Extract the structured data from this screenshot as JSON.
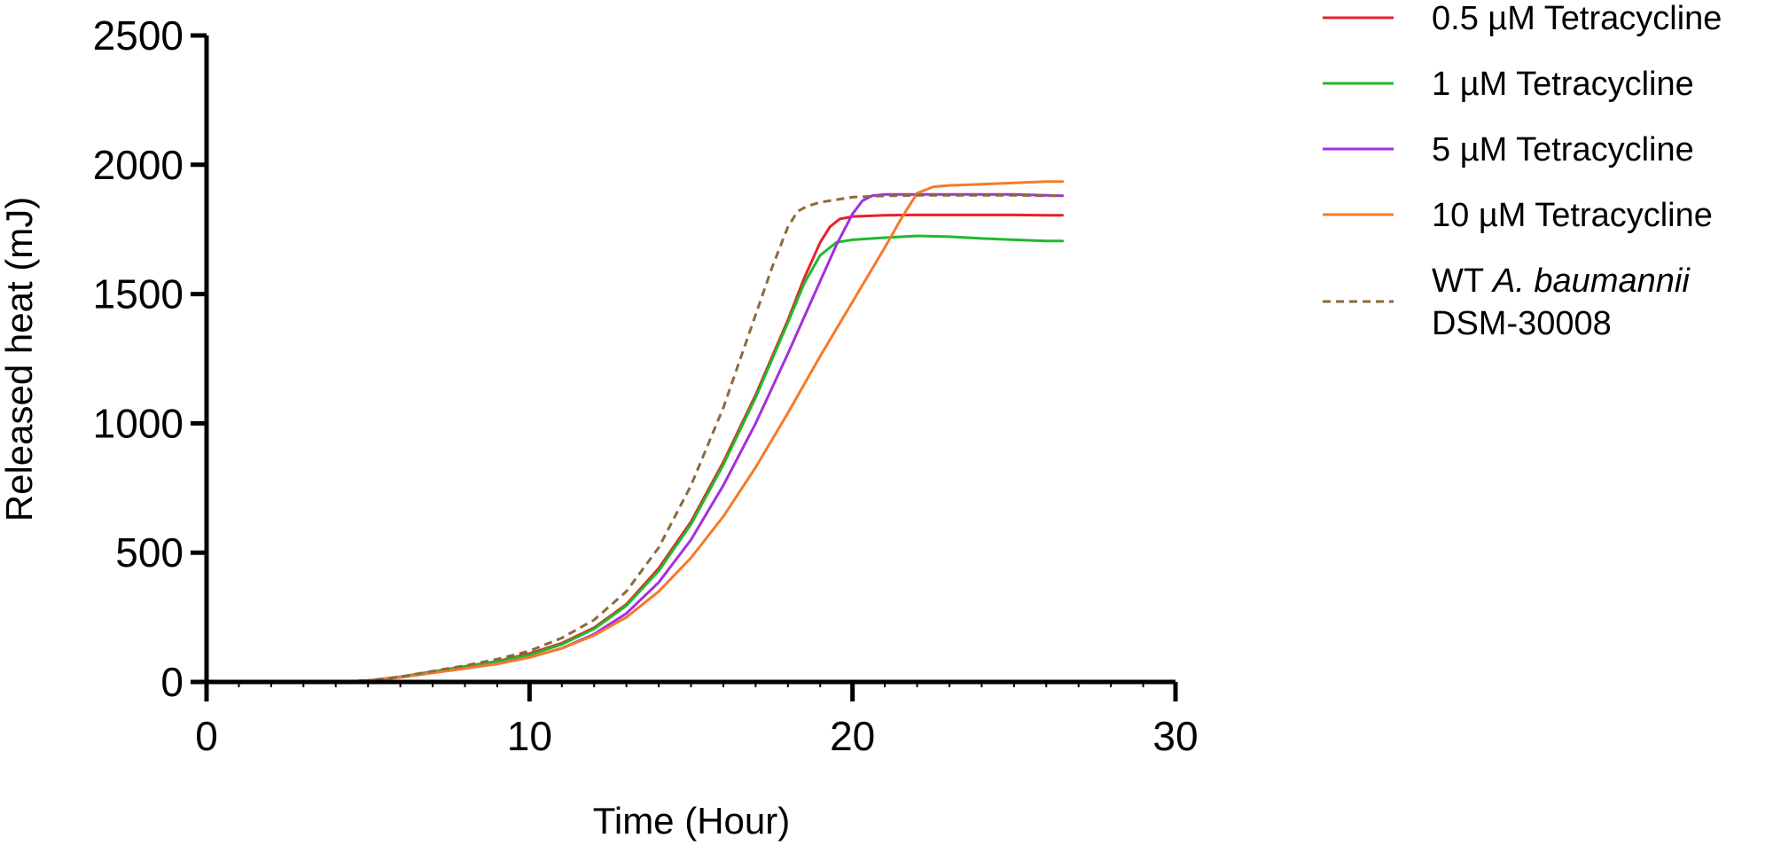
{
  "chart_data": {
    "type": "line",
    "title": "",
    "xlabel": "Time (Hour)",
    "ylabel": "Released heat (mJ)",
    "xlim": [
      0,
      30
    ],
    "ylim": [
      0,
      2500
    ],
    "xticks": [
      0,
      10,
      20,
      30
    ],
    "yticks": [
      0,
      500,
      1000,
      1500,
      2000,
      2500
    ],
    "x_tick_labels": [
      "0",
      "10",
      "20",
      "30"
    ],
    "y_tick_labels": [
      "0",
      "500",
      "1000",
      "1500",
      "2000",
      "2500"
    ],
    "grid": false,
    "legend_position": "right",
    "series": [
      {
        "name": "0.5 µM Tetracycline",
        "color": "#e8202a",
        "dash": "solid",
        "x": [
          4,
          5,
          6,
          7,
          8,
          9,
          10,
          11,
          12,
          13,
          14,
          15,
          16,
          17,
          18,
          18.5,
          19,
          19.3,
          19.6,
          20,
          21,
          22,
          23,
          24,
          25,
          26,
          26.5
        ],
        "y": [
          0,
          5,
          20,
          40,
          60,
          80,
          110,
          150,
          210,
          300,
          440,
          620,
          850,
          1110,
          1400,
          1560,
          1700,
          1760,
          1790,
          1800,
          1805,
          1806,
          1806,
          1806,
          1806,
          1805,
          1805
        ]
      },
      {
        "name": "1 µM Tetracycline",
        "color": "#1fba2c",
        "dash": "solid",
        "x": [
          4,
          5,
          6,
          7,
          8,
          9,
          10,
          11,
          12,
          13,
          14,
          15,
          16,
          17,
          18,
          18.5,
          19,
          19.5,
          20,
          21,
          22,
          23,
          24,
          25,
          26,
          26.5
        ],
        "y": [
          0,
          5,
          20,
          40,
          58,
          78,
          105,
          145,
          205,
          295,
          430,
          610,
          840,
          1100,
          1390,
          1540,
          1650,
          1700,
          1710,
          1718,
          1725,
          1722,
          1715,
          1710,
          1705,
          1705
        ]
      },
      {
        "name": "5 µM Tetracycline",
        "color": "#a42ee0",
        "dash": "solid",
        "x": [
          4,
          5,
          6,
          7,
          8,
          9,
          10,
          11,
          12,
          13,
          14,
          15,
          16,
          17,
          18,
          19,
          19.5,
          20,
          20.3,
          20.6,
          21,
          22,
          23,
          24,
          25,
          26,
          26.5
        ],
        "y": [
          0,
          5,
          18,
          35,
          52,
          70,
          95,
          130,
          185,
          265,
          385,
          550,
          760,
          1000,
          1270,
          1550,
          1690,
          1810,
          1860,
          1880,
          1885,
          1885,
          1885,
          1885,
          1885,
          1882,
          1880
        ]
      },
      {
        "name": "10 µM Tetracycline",
        "color": "#f57a2a",
        "dash": "solid",
        "x": [
          4,
          5,
          6,
          7,
          8,
          9,
          10,
          11,
          12,
          13,
          14,
          15,
          16,
          17,
          18,
          19,
          20,
          21,
          21.5,
          22,
          22.5,
          23,
          24,
          25,
          26,
          26.5
        ],
        "y": [
          0,
          5,
          18,
          35,
          52,
          70,
          95,
          130,
          180,
          250,
          350,
          480,
          640,
          830,
          1040,
          1260,
          1470,
          1680,
          1790,
          1890,
          1915,
          1920,
          1925,
          1930,
          1935,
          1935
        ]
      },
      {
        "name": "WT A. baumannii DSM-30008",
        "color": "#8b6a3b",
        "dash": "dashed",
        "x": [
          4,
          5,
          6,
          7,
          8,
          9,
          10,
          11,
          12,
          13,
          14,
          15,
          16,
          17,
          17.5,
          18,
          18.3,
          18.6,
          19,
          20,
          21,
          22,
          23,
          24,
          25,
          26,
          26.5
        ],
        "y": [
          0,
          5,
          20,
          42,
          63,
          88,
          120,
          170,
          240,
          350,
          520,
          760,
          1060,
          1420,
          1600,
          1760,
          1820,
          1840,
          1855,
          1875,
          1880,
          1882,
          1882,
          1882,
          1882,
          1880,
          1880
        ]
      }
    ]
  },
  "legend": {
    "items": [
      {
        "label": "0.5 µM Tetracycline",
        "color": "#e8202a",
        "dash": "solid"
      },
      {
        "label": "1 µM Tetracycline",
        "color": "#1fba2c",
        "dash": "solid"
      },
      {
        "label": "5 µM Tetracycline",
        "color": "#a42ee0",
        "dash": "solid"
      },
      {
        "label": "10 µM Tetracycline",
        "color": "#f57a2a",
        "dash": "solid"
      },
      {
        "label_prefix": "WT ",
        "label_italic": "A. baumannii",
        "label_line2": "DSM-30008",
        "color": "#8b6a3b",
        "dash": "dashed"
      }
    ]
  }
}
